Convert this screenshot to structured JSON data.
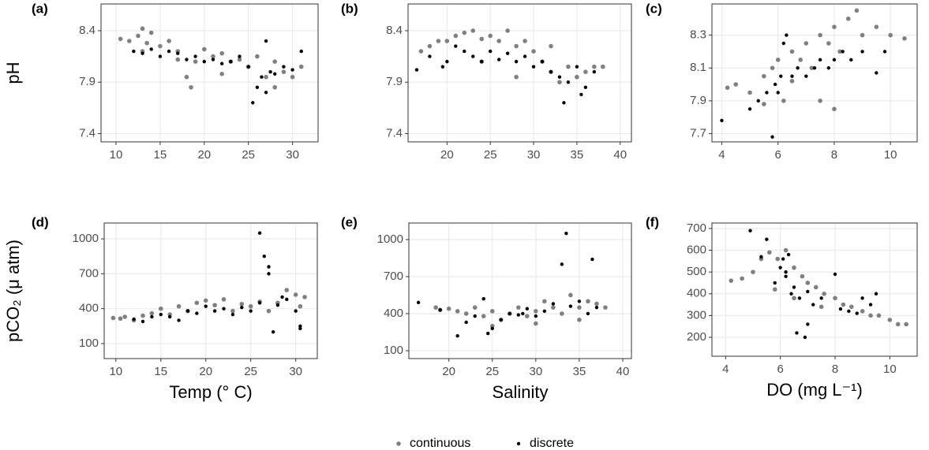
{
  "chart_data": [
    {
      "type": "scatter",
      "label": "(a)",
      "ylabel": "pH",
      "xlim": [
        8.3,
        32.9
      ],
      "ylim": [
        7.32,
        8.66
      ],
      "xticks": [
        10,
        15,
        20,
        25,
        30
      ],
      "yticks": [
        7.4,
        7.9,
        8.4
      ],
      "grid": true,
      "series": [
        {
          "x": [
            10.5,
            11.5,
            12.5,
            13,
            13.5,
            14,
            15,
            16,
            17,
            18,
            18.5,
            19,
            20,
            21,
            22,
            23,
            24,
            25,
            26,
            27,
            28,
            29,
            30,
            31,
            13,
            17,
            22,
            28
          ],
          "values": [
            8.32,
            8.3,
            8.35,
            8.42,
            8.28,
            8.38,
            8.25,
            8.3,
            8.2,
            7.95,
            7.85,
            8.1,
            8.22,
            8.15,
            8.18,
            8.1,
            8.12,
            8.05,
            8.15,
            7.95,
            8.1,
            8.0,
            7.95,
            8.05,
            8.2,
            8.12,
            7.98,
            7.85
          ]
        },
        {
          "x": [
            12,
            13,
            14,
            15,
            16,
            17,
            18,
            19,
            20,
            21,
            22,
            23,
            24,
            25,
            26,
            26.5,
            27,
            27.5,
            28,
            29,
            30,
            31,
            25.5,
            27
          ],
          "values": [
            8.2,
            8.18,
            8.22,
            8.15,
            8.2,
            8.18,
            8.12,
            8.15,
            8.1,
            8.12,
            8.08,
            8.1,
            8.15,
            8.05,
            7.85,
            7.95,
            8.3,
            8.0,
            7.98,
            8.05,
            8.02,
            8.2,
            7.7,
            7.8
          ]
        }
      ]
    },
    {
      "type": "scatter",
      "label": "(b)",
      "xlim": [
        15.5,
        41.3
      ],
      "ylim": [
        7.32,
        8.66
      ],
      "xticks": [
        20,
        25,
        30,
        35,
        40
      ],
      "yticks": [
        7.4,
        7.9,
        8.4
      ],
      "grid": true,
      "series": [
        {
          "x": [
            17,
            18,
            19,
            20,
            21,
            22,
            23,
            24,
            25,
            26,
            27,
            28,
            29,
            30,
            31,
            32,
            33,
            34,
            35,
            36,
            37,
            38,
            24,
            28,
            32
          ],
          "values": [
            8.2,
            8.25,
            8.3,
            8.3,
            8.35,
            8.38,
            8.4,
            8.32,
            8.35,
            8.3,
            8.4,
            8.25,
            8.3,
            8.2,
            8.1,
            8.0,
            7.9,
            8.05,
            7.95,
            8.0,
            8.05,
            8.05,
            8.1,
            7.95,
            8.25
          ]
        },
        {
          "x": [
            16.5,
            18,
            19.5,
            21,
            22,
            23,
            24,
            25,
            26,
            27,
            28,
            29,
            30,
            31,
            32,
            33,
            34,
            35,
            36,
            37,
            20,
            33.5,
            35.5
          ],
          "values": [
            8.02,
            8.15,
            8.05,
            8.25,
            8.2,
            8.15,
            8.1,
            8.2,
            8.12,
            8.18,
            8.1,
            8.15,
            8.05,
            8.1,
            8.0,
            7.95,
            7.9,
            8.05,
            7.85,
            8.0,
            8.1,
            7.7,
            7.78
          ]
        }
      ]
    },
    {
      "type": "scatter",
      "label": "(c)",
      "xlim": [
        3.65,
        10.95
      ],
      "ylim": [
        7.65,
        8.49
      ],
      "xticks": [
        4,
        6,
        8,
        10
      ],
      "yticks": [
        7.7,
        7.9,
        8.1,
        8.3
      ],
      "grid": true,
      "series": [
        {
          "x": [
            4.2,
            4.5,
            5,
            5.5,
            5.8,
            6,
            6.2,
            6.5,
            6.8,
            7,
            7.2,
            7.5,
            7.8,
            8,
            8.2,
            8.5,
            8.8,
            9,
            9.5,
            10,
            10.5,
            7.5,
            8,
            5.5,
            6.5
          ],
          "values": [
            7.98,
            8.0,
            7.95,
            8.05,
            8.1,
            8.15,
            7.9,
            8.2,
            8.15,
            8.25,
            8.1,
            8.3,
            8.25,
            8.35,
            8.2,
            8.4,
            8.45,
            8.3,
            8.35,
            8.3,
            8.28,
            7.9,
            7.85,
            7.88,
            8.02
          ]
        },
        {
          "x": [
            4,
            5,
            5.3,
            5.6,
            5.9,
            6,
            6.1,
            6.3,
            6.5,
            6.7,
            7,
            7.3,
            7.5,
            7.8,
            8,
            8.3,
            8.6,
            9,
            9.5,
            9.8,
            5.8,
            6.2
          ],
          "values": [
            7.78,
            7.85,
            7.9,
            7.95,
            8.0,
            7.95,
            8.05,
            8.3,
            8.05,
            8.1,
            8.05,
            8.1,
            8.15,
            8.1,
            8.15,
            8.2,
            8.15,
            8.2,
            8.07,
            8.2,
            7.68,
            8.25
          ]
        }
      ]
    },
    {
      "type": "scatter",
      "label": "(d)",
      "ylabel": "pCO₂ (μ atm)",
      "xlabel": "Temp (° C)",
      "xlim": [
        8.7,
        32.4
      ],
      "ylim": [
        -29,
        1136
      ],
      "xticks": [
        10,
        15,
        20,
        25,
        30
      ],
      "yticks": [
        100,
        400,
        700,
        1000
      ],
      "grid": true,
      "series": [
        {
          "x": [
            9.7,
            10.5,
            11,
            12,
            13,
            14,
            15,
            16,
            17,
            18,
            19,
            20,
            21,
            22,
            23,
            24,
            25,
            26,
            27,
            28,
            29,
            30,
            31,
            30.5
          ],
          "values": [
            320,
            315,
            330,
            300,
            340,
            360,
            400,
            350,
            420,
            380,
            450,
            470,
            430,
            480,
            380,
            440,
            420,
            460,
            380,
            450,
            560,
            520,
            500,
            420
          ]
        },
        {
          "x": [
            12,
            13,
            14,
            15,
            16,
            17,
            18,
            19,
            20,
            21,
            22,
            23,
            24,
            25,
            26,
            26,
            26.5,
            27,
            27,
            27.5,
            28,
            28.5,
            29,
            30,
            30.5,
            30.5
          ],
          "values": [
            310,
            290,
            330,
            350,
            330,
            300,
            380,
            360,
            420,
            380,
            400,
            350,
            410,
            380,
            1050,
            450,
            850,
            760,
            700,
            200,
            430,
            500,
            480,
            380,
            250,
            230
          ]
        }
      ]
    },
    {
      "type": "scatter",
      "label": "(e)",
      "xlabel": "Salinity",
      "xlim": [
        15.4,
        41.0
      ],
      "ylim": [
        36,
        1134
      ],
      "xticks": [
        20,
        25,
        30,
        35,
        40
      ],
      "yticks": [
        100,
        400,
        700,
        1000
      ],
      "grid": true,
      "series": [
        {
          "x": [
            18.5,
            19,
            20,
            21,
            22,
            23,
            24,
            25,
            26,
            27,
            28,
            29,
            30,
            31,
            32,
            33,
            34,
            35,
            36,
            37,
            38,
            25,
            30,
            35
          ],
          "values": [
            450,
            430,
            440,
            420,
            400,
            450,
            380,
            420,
            350,
            400,
            450,
            380,
            420,
            500,
            450,
            400,
            550,
            450,
            500,
            480,
            450,
            300,
            320,
            350
          ]
        },
        {
          "x": [
            16.5,
            19,
            21,
            22,
            23,
            24,
            25,
            26,
            27,
            28,
            29,
            30,
            31,
            32,
            33,
            33.5,
            34,
            35,
            36,
            36.5,
            37,
            24.5,
            28.5
          ],
          "values": [
            490,
            430,
            220,
            330,
            380,
            520,
            280,
            350,
            400,
            390,
            440,
            380,
            420,
            480,
            800,
            1050,
            460,
            500,
            400,
            840,
            450,
            240,
            400
          ]
        }
      ]
    },
    {
      "type": "scatter",
      "label": "(f)",
      "xlabel": "DO (mg L⁻¹)",
      "xlim": [
        3.5,
        11.0
      ],
      "ylim": [
        113,
        725
      ],
      "xticks": [
        4,
        6,
        8,
        10
      ],
      "yticks": [
        200,
        300,
        400,
        500,
        600,
        700
      ],
      "grid": true,
      "series": [
        {
          "x": [
            4.2,
            4.6,
            5,
            5.3,
            5.6,
            5.9,
            6.2,
            6.5,
            6.8,
            7,
            7.3,
            7.6,
            8,
            8.3,
            8.6,
            9,
            9.3,
            9.6,
            10,
            10.3,
            10.6,
            5.8,
            6.5,
            7.5
          ],
          "values": [
            460,
            470,
            500,
            560,
            590,
            560,
            600,
            520,
            480,
            450,
            430,
            400,
            380,
            350,
            340,
            320,
            300,
            300,
            280,
            260,
            260,
            420,
            380,
            340
          ]
        },
        {
          "x": [
            4.9,
            5.3,
            5.5,
            5.8,
            6,
            6.1,
            6.2,
            6.3,
            6.4,
            6.5,
            6.7,
            7,
            7.2,
            7.5,
            8,
            8.2,
            8.5,
            8.8,
            9,
            9.3,
            9.5,
            6.6,
            6.9,
            7,
            6.2
          ],
          "values": [
            690,
            570,
            650,
            450,
            520,
            560,
            480,
            580,
            400,
            430,
            380,
            410,
            350,
            380,
            490,
            330,
            320,
            310,
            380,
            350,
            400,
            220,
            200,
            260,
            500
          ]
        }
      ]
    }
  ],
  "legend": [
    {
      "name": "continuous",
      "color": "#808080"
    },
    {
      "name": "discrete",
      "color": "#000000"
    }
  ]
}
